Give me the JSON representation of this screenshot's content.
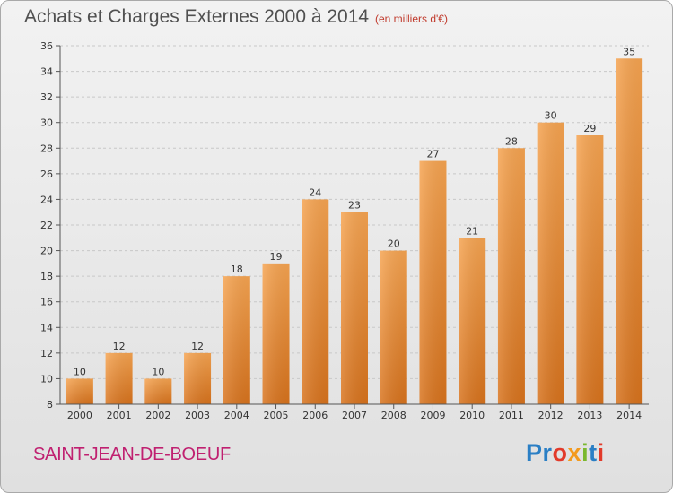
{
  "title": "Achats et Charges Externes 2000 à 2014",
  "subtitle": "(en milliers d'€)",
  "commune": "SAINT-JEAN-DE-BOEUF",
  "logo": {
    "parts": [
      "Pr",
      "o",
      "x",
      "i",
      "t",
      "i"
    ],
    "colors": [
      "#2a7fc5",
      "#e23a2a",
      "#f39a1e",
      "#7ab82e",
      "#2a7fc5",
      "#e23a2a"
    ]
  },
  "colors": {
    "bar_top": "#f6a451",
    "bar_bottom": "#d8731d",
    "grid": "#c8c8c8",
    "axis": "#555555"
  },
  "chart_data": {
    "type": "bar",
    "title": "Achats et Charges Externes 2000 à 2014",
    "subtitle": "(en milliers d'€)",
    "xlabel": "",
    "ylabel": "",
    "categories": [
      "2000",
      "2001",
      "2002",
      "2003",
      "2004",
      "2005",
      "2006",
      "2007",
      "2008",
      "2009",
      "2010",
      "2011",
      "2012",
      "2013",
      "2014"
    ],
    "values": [
      10,
      12,
      10,
      12,
      18,
      19,
      24,
      23,
      20,
      27,
      21,
      28,
      30,
      29,
      35
    ],
    "ylim": [
      8,
      36
    ],
    "yticks": [
      8,
      10,
      12,
      14,
      16,
      18,
      20,
      22,
      24,
      26,
      28,
      30,
      32,
      34,
      36
    ],
    "grid": true,
    "legend": "none"
  }
}
